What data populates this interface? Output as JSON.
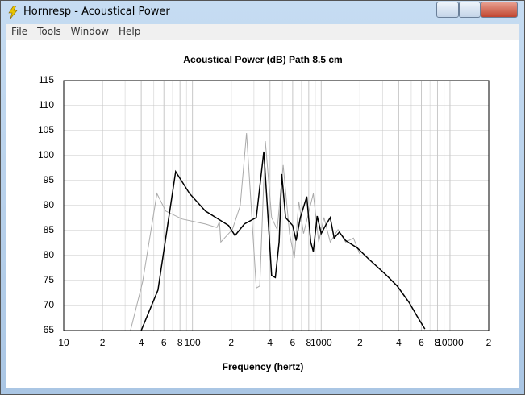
{
  "window": {
    "title": "Hornresp - Acoustical Power",
    "menu": [
      "File",
      "Tools",
      "Window",
      "Help"
    ]
  },
  "chart_data": {
    "type": "line",
    "title": "Acoustical Power (dB)   Path 8.5 cm",
    "x_label": "Frequency (hertz)",
    "xscale": "log",
    "xlim": [
      10,
      20000
    ],
    "xticks": [
      10,
      {
        "value": 20,
        "label": "2"
      },
      {
        "value": 40,
        "label": "4"
      },
      {
        "value": 60,
        "label": "6"
      },
      {
        "value": 80,
        "label": "8"
      },
      100,
      {
        "value": 200,
        "label": "2"
      },
      {
        "value": 400,
        "label": "4"
      },
      {
        "value": 600,
        "label": "6"
      },
      {
        "value": 800,
        "label": "8"
      },
      1000,
      {
        "value": 2000,
        "label": "2"
      },
      {
        "value": 4000,
        "label": "4"
      },
      {
        "value": 6000,
        "label": "6"
      },
      {
        "value": 8000,
        "label": "8"
      },
      10000,
      {
        "value": 20000,
        "label": "2"
      }
    ],
    "xminorticks": [
      30,
      50,
      70,
      90,
      300,
      500,
      700,
      900,
      3000,
      5000,
      7000,
      9000
    ],
    "ylim": [
      65,
      115
    ],
    "yticks": [
      65,
      70,
      75,
      80,
      85,
      90,
      95,
      100,
      105,
      110,
      115
    ],
    "grid": true,
    "series": [
      {
        "color": "#aaaaaa",
        "x": [
          33,
          41,
          53,
          62,
          83,
          126,
          155,
          162,
          166,
          204,
          235,
          263,
          282,
          313,
          333,
          368,
          412,
          455,
          506,
          567,
          619,
          670,
          729,
          868,
          956,
          1050,
          1176,
          1349,
          1549,
          1780,
          1990
        ],
        "values": [
          65,
          74.7,
          92.4,
          88.9,
          87.3,
          86.3,
          85.6,
          86.8,
          82.7,
          85.2,
          90,
          104.5,
          92.4,
          73.5,
          73.9,
          102.9,
          87.6,
          85.2,
          98.1,
          84.4,
          79.5,
          90.8,
          84.4,
          92.4,
          82.7,
          87.6,
          82.7,
          85.2,
          82.7,
          83.5,
          80.3
        ]
      },
      {
        "color": "#000000",
        "x": [
          40,
          54,
          74,
          95,
          126,
          191,
          214,
          253,
          313,
          358,
          383,
          412,
          440,
          471,
          494,
          529,
          600,
          639,
          688,
          773,
          829,
          868,
          931,
          1000,
          1080,
          1176,
          1260,
          1384,
          1549,
          1910,
          2363,
          3140,
          3890,
          4815,
          5540,
          6380
        ],
        "values": [
          65,
          73.1,
          96.8,
          92.4,
          88.9,
          86,
          84,
          86.3,
          87.6,
          100.8,
          89,
          76,
          75.6,
          82.7,
          96.3,
          87.6,
          86,
          83,
          87.6,
          91.8,
          82.7,
          80.8,
          87.9,
          84.4,
          86,
          87.6,
          83.5,
          84.7,
          83,
          81.5,
          79.2,
          76.3,
          73.9,
          70.6,
          67.9,
          65.3
        ]
      }
    ]
  }
}
